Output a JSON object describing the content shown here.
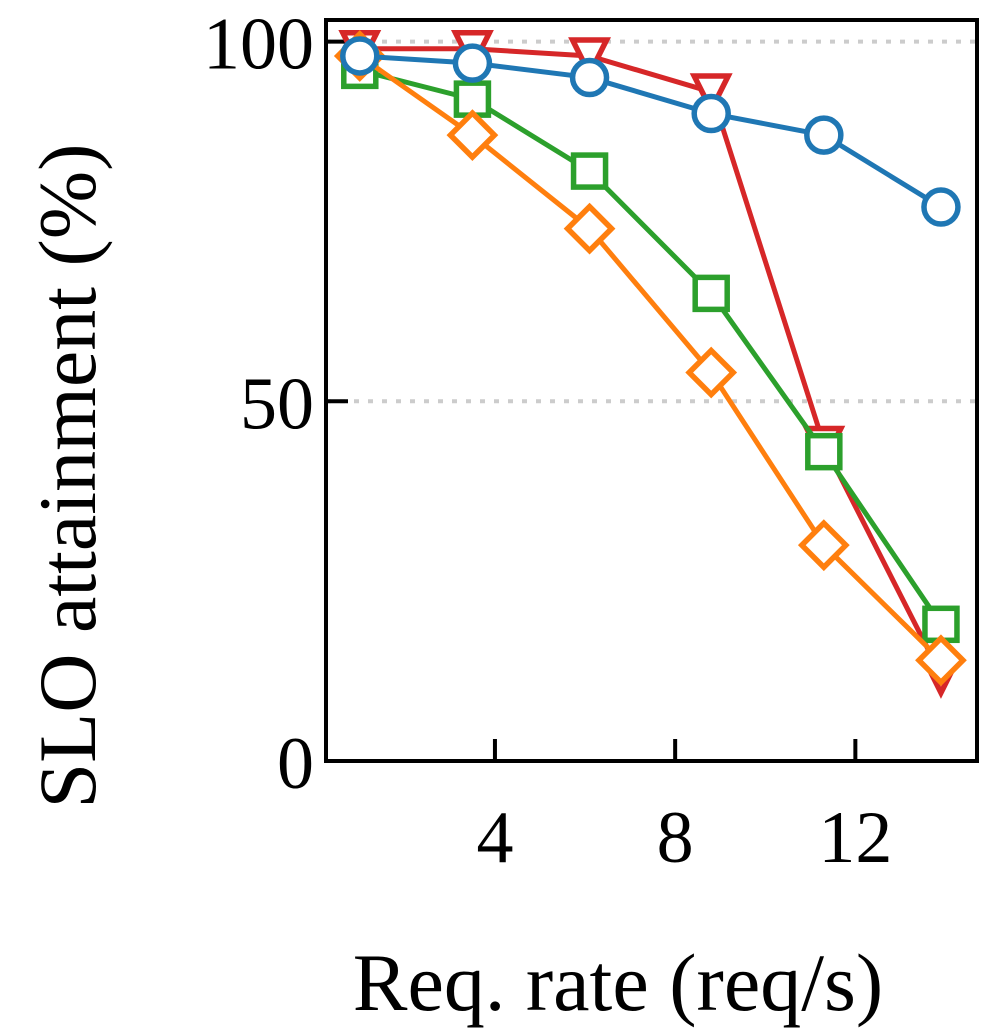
{
  "chart_data": {
    "type": "line",
    "title": "",
    "xlabel": "Req. rate (req/s)",
    "ylabel": "SLO attainment (%)",
    "xlim": [
      0.25,
      14.7
    ],
    "ylim": [
      0,
      103
    ],
    "xticks": [
      4,
      8,
      12
    ],
    "yticks": [
      0,
      50,
      100
    ],
    "xtick_labels": [
      "4",
      "8",
      "12"
    ],
    "ytick_labels": [
      "0",
      "50",
      "100"
    ],
    "grid": "horizontal-dotted",
    "legend": "none",
    "series": [
      {
        "name": "red",
        "color": "#d62728",
        "marker": "triangle-down",
        "x": [
          1.0,
          3.5,
          6.1,
          8.8,
          11.3,
          13.9
        ],
        "y": [
          99,
          99,
          98,
          93,
          44,
          12
        ]
      },
      {
        "name": "green",
        "color": "#2ca02c",
        "marker": "square",
        "x": [
          1.0,
          3.5,
          6.1,
          8.8,
          11.3,
          13.9
        ],
        "y": [
          96,
          92,
          82,
          65,
          43,
          19
        ]
      },
      {
        "name": "orange",
        "color": "#ff7f0e",
        "marker": "diamond",
        "x": [
          1.0,
          3.5,
          6.1,
          8.8,
          11.3,
          13.9
        ],
        "y": [
          98,
          87,
          74,
          54,
          30,
          14
        ]
      },
      {
        "name": "blue",
        "color": "#1f77b4",
        "marker": "circle",
        "x": [
          1.0,
          3.5,
          6.1,
          8.8,
          11.3,
          13.9
        ],
        "y": [
          98,
          97,
          95,
          90,
          87,
          77
        ]
      }
    ]
  }
}
